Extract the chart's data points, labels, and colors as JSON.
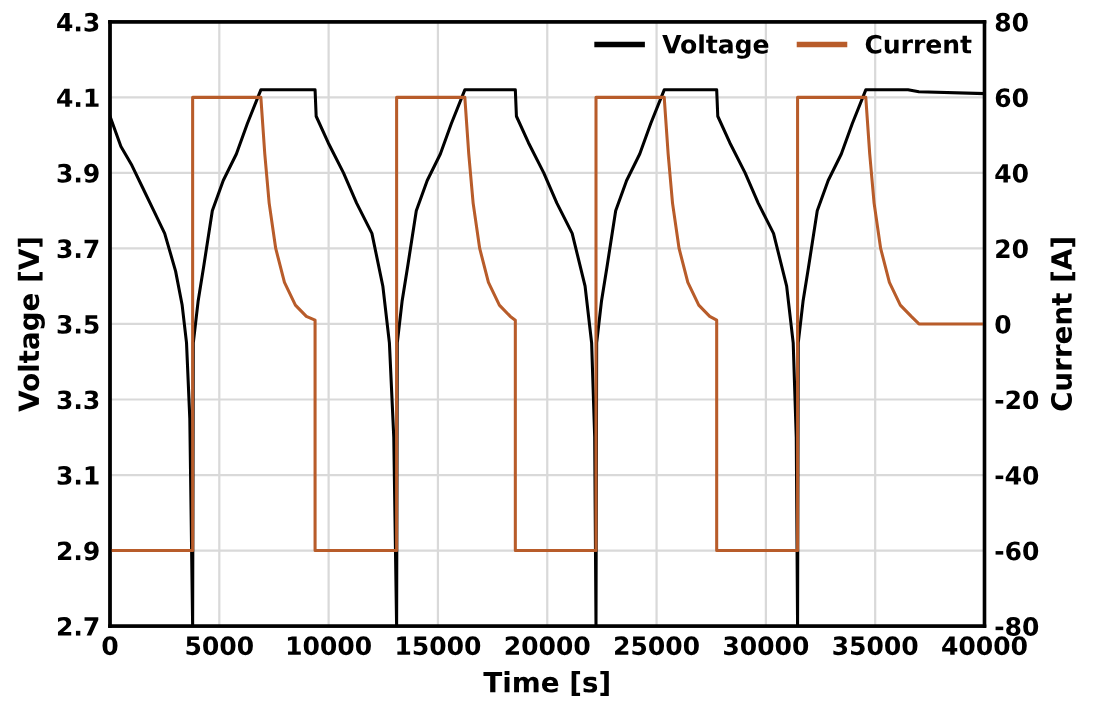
{
  "chart_data": {
    "type": "line",
    "xlabel": "Time [s]",
    "ylabel": "Voltage [V]",
    "y2label": "Current [A]",
    "xlim": [
      0,
      40000
    ],
    "xticks": [
      0,
      5000,
      10000,
      15000,
      20000,
      25000,
      30000,
      35000,
      40000
    ],
    "ylim": [
      2.7,
      4.3
    ],
    "yticks": [
      2.7,
      2.9,
      3.1,
      3.3,
      3.5,
      3.7,
      3.9,
      4.1,
      4.3
    ],
    "y2lim": [
      -80,
      80
    ],
    "y2ticks": [
      -80,
      -60,
      -40,
      -20,
      0,
      20,
      40,
      60,
      80
    ],
    "grid": true,
    "legend": "top right",
    "marker": "none",
    "line_style": "solid",
    "series": [
      {
        "name": "Voltage",
        "color": "#000000",
        "x": [
          0,
          500,
          1000,
          1500,
          2000,
          2500,
          3000,
          3300,
          3500,
          3650,
          3780,
          3810,
          4030,
          4280,
          4680,
          5180,
          5780,
          6280,
          6900,
          9380,
          9430,
          9980,
          10680,
          11280,
          11980,
          12480,
          12780,
          12980,
          13110,
          13140,
          13360,
          13610,
          14010,
          14510,
          15110,
          15610,
          16230,
          18540,
          18590,
          19140,
          19840,
          20440,
          21140,
          21730,
          22030,
          22170,
          22230,
          22260,
          22480,
          22730,
          23130,
          23630,
          24230,
          24730,
          25350,
          27750,
          27800,
          28350,
          29050,
          29650,
          30350,
          30950,
          31250,
          31390,
          31450,
          31480,
          31700,
          31950,
          32350,
          32850,
          33450,
          33950,
          34570,
          36500,
          37000,
          40000
        ],
        "values": [
          4.05,
          3.97,
          3.92,
          3.86,
          3.8,
          3.74,
          3.64,
          3.55,
          3.45,
          3.25,
          2.7,
          3.45,
          3.56,
          3.65,
          3.8,
          3.88,
          3.95,
          4.03,
          4.12,
          4.12,
          4.05,
          3.98,
          3.9,
          3.82,
          3.74,
          3.6,
          3.45,
          3.2,
          2.7,
          3.45,
          3.56,
          3.65,
          3.8,
          3.88,
          3.95,
          4.03,
          4.12,
          4.12,
          4.05,
          3.98,
          3.9,
          3.82,
          3.74,
          3.6,
          3.45,
          3.2,
          2.7,
          3.45,
          3.56,
          3.65,
          3.8,
          3.88,
          3.95,
          4.03,
          4.12,
          4.12,
          4.05,
          3.98,
          3.9,
          3.82,
          3.74,
          3.6,
          3.45,
          3.2,
          2.7,
          3.45,
          3.56,
          3.65,
          3.8,
          3.88,
          3.95,
          4.03,
          4.12,
          4.12,
          4.115,
          4.11
        ]
      },
      {
        "name": "Current",
        "color": "#b85c2a",
        "axis": "y2",
        "x": [
          0,
          3780,
          3780,
          6900,
          7080,
          7280,
          7580,
          7980,
          8480,
          8980,
          9380,
          9380,
          13110,
          13110,
          16230,
          16410,
          16610,
          16910,
          17310,
          17810,
          18310,
          18540,
          18540,
          22230,
          22230,
          25350,
          25530,
          25730,
          26030,
          26430,
          26930,
          27430,
          27750,
          27750,
          31450,
          31450,
          34570,
          34750,
          34950,
          35250,
          35650,
          36150,
          36650,
          37000,
          40000
        ],
        "values": [
          -60,
          -60,
          60,
          60,
          45,
          32,
          20,
          11,
          5,
          2,
          1,
          -60,
          -60,
          60,
          60,
          45,
          32,
          20,
          11,
          5,
          2,
          1,
          -60,
          -60,
          60,
          60,
          45,
          32,
          20,
          11,
          5,
          2,
          1,
          -60,
          -60,
          60,
          60,
          45,
          32,
          20,
          11,
          5,
          2,
          0,
          0
        ]
      }
    ]
  }
}
